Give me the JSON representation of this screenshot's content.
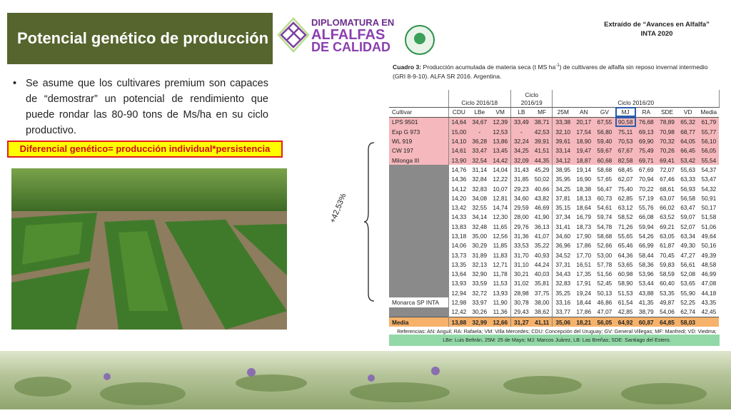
{
  "header": {
    "title": "Potencial genético de producción",
    "logo_text": [
      "DIPLOMATURA EN",
      "ALFALFAS",
      "DE CALIDAD"
    ],
    "source": [
      "Extraído de “Avances en Alfalfa”",
      "INTA 2020"
    ]
  },
  "bullet": "Se asume que los cultivares premium son capaces de “demostrar” un potencial de rendimiento que puede rondar las 80-90 tons de Ms/ha en su ciclo productivo.",
  "highlight": "Diferencial genético= producción individual*persistencia",
  "annotation": "+42,53%",
  "table": {
    "caption_label": "Cuadro 3:",
    "caption_a": "Producción acumulada de materia seca (t MS ha",
    "caption_sup": "-1",
    "caption_b": ") de cultivares de alfalfa sin reposo invernal intermedio (GRI 8-9-10). ALFA SR 2016. Argentina.",
    "groups": [
      {
        "label": "Ciclo 2016/18",
        "span": 3
      },
      {
        "label": "Ciclo 2016/19",
        "span": 2
      },
      {
        "label": "Ciclo 2016/20",
        "span": 8
      }
    ],
    "columns": [
      "Cultivar",
      "CDU",
      "LBe",
      "VM",
      "LB",
      "MF",
      "25M",
      "AN",
      "GV",
      "MJ",
      "RA",
      "SDE",
      "VD",
      "Media"
    ],
    "rows": [
      {
        "cultivar": "LPS 9501",
        "values": [
          "14,64",
          "34,67",
          "12,39",
          "33,49",
          "38,71",
          "33,38",
          "20,17",
          "67,55",
          "90,58",
          "76,68",
          "78,89",
          "65,32",
          "61,79"
        ]
      },
      {
        "cultivar": "Exp G 973",
        "values": [
          "15,00",
          "-",
          "12,53",
          "-",
          "42,53",
          "32,10",
          "17,54",
          "56,80",
          "75,11",
          "69,13",
          "70,98",
          "68,77",
          "55,77"
        ]
      },
      {
        "cultivar": "WL 919",
        "values": [
          "14,10",
          "36,28",
          "13,86",
          "32,24",
          "39,91",
          "39,61",
          "18,90",
          "59,40",
          "70,53",
          "69,90",
          "70,32",
          "64,05",
          "56,10"
        ]
      },
      {
        "cultivar": "CW 197",
        "values": [
          "14,61",
          "33,47",
          "13,45",
          "34,25",
          "41,51",
          "33,14",
          "19,47",
          "59,67",
          "67,67",
          "75,49",
          "70,26",
          "66,45",
          "56,05"
        ]
      },
      {
        "cultivar": "Milonga III",
        "values": [
          "13,90",
          "32,54",
          "14,42",
          "32,09",
          "44,35",
          "34,12",
          "18,87",
          "60,68",
          "82,58",
          "69,71",
          "69,41",
          "53,42",
          "55,54"
        ]
      },
      {
        "cultivar": null,
        "values": [
          "14,76",
          "31,14",
          "14,04",
          "31,43",
          "45,29",
          "38,95",
          "19,14",
          "58,68",
          "68,45",
          "67,69",
          "72,07",
          "55,63",
          "54,37"
        ]
      },
      {
        "cultivar": null,
        "values": [
          "14,36",
          "32,84",
          "12,22",
          "31,85",
          "50,02",
          "35,95",
          "16,90",
          "57,65",
          "62,07",
          "70,94",
          "67,46",
          "63,33",
          "53,47"
        ]
      },
      {
        "cultivar": null,
        "values": [
          "14,12",
          "32,83",
          "10,07",
          "29,23",
          "40,66",
          "34,25",
          "18,38",
          "56,47",
          "75,40",
          "70,22",
          "68,61",
          "56,93",
          "54,32"
        ]
      },
      {
        "cultivar": null,
        "values": [
          "14,20",
          "34,08",
          "12,81",
          "34,60",
          "43,82",
          "37,81",
          "18,13",
          "60,73",
          "62,85",
          "57,19",
          "63,07",
          "56,58",
          "50,91"
        ]
      },
      {
        "cultivar": null,
        "values": [
          "13,42",
          "32,55",
          "14,74",
          "29,59",
          "46,69",
          "35,15",
          "18,64",
          "54,61",
          "63,12",
          "55,76",
          "66,02",
          "63,47",
          "50,17"
        ]
      },
      {
        "cultivar": null,
        "values": [
          "14,33",
          "34,14",
          "12,30",
          "28,00",
          "41,90",
          "37,34",
          "16,79",
          "59,74",
          "58,52",
          "66,08",
          "63,52",
          "59,07",
          "51,58"
        ]
      },
      {
        "cultivar": null,
        "values": [
          "13,83",
          "32,48",
          "11,65",
          "29,76",
          "36,13",
          "31,41",
          "18,73",
          "54,78",
          "71,26",
          "59,94",
          "69,21",
          "52,07",
          "51,06"
        ]
      },
      {
        "cultivar": null,
        "values": [
          "13,18",
          "35,00",
          "12,56",
          "31,36",
          "41,07",
          "34,60",
          "17,90",
          "58,68",
          "55,65",
          "54,26",
          "63,05",
          "63,34",
          "49,64"
        ]
      },
      {
        "cultivar": null,
        "values": [
          "14,06",
          "30,29",
          "11,85",
          "33,53",
          "35,22",
          "36,96",
          "17,86",
          "52,66",
          "65,46",
          "66,99",
          "61,87",
          "49,30",
          "50,16"
        ]
      },
      {
        "cultivar": null,
        "values": [
          "13,73",
          "31,89",
          "11,83",
          "31,70",
          "40,93",
          "34,52",
          "17,70",
          "53,00",
          "64,36",
          "58,44",
          "70,45",
          "47,27",
          "49,39"
        ]
      },
      {
        "cultivar": null,
        "values": [
          "13,35",
          "32,13",
          "12,71",
          "31,10",
          "44,24",
          "37,31",
          "16,51",
          "57,78",
          "53,65",
          "58,36",
          "59,83",
          "56,61",
          "48,58"
        ]
      },
      {
        "cultivar": null,
        "values": [
          "13,64",
          "32,90",
          "11,78",
          "30,21",
          "40,03",
          "34,43",
          "17,35",
          "51,56",
          "60,98",
          "53,96",
          "58,59",
          "52,08",
          "46,99"
        ]
      },
      {
        "cultivar": null,
        "values": [
          "13,93",
          "33,59",
          "11,53",
          "31,02",
          "35,81",
          "32,83",
          "17,91",
          "52,45",
          "58,90",
          "53,44",
          "60,40",
          "53,65",
          "47,08"
        ]
      },
      {
        "cultivar": null,
        "values": [
          "12,94",
          "32,72",
          "13,93",
          "28,98",
          "37,75",
          "35,25",
          "19,24",
          "50,13",
          "51,53",
          "43,88",
          "53,35",
          "55,90",
          "44,18"
        ]
      },
      {
        "cultivar": "Monarca SP INTA",
        "values": [
          "12,98",
          "33,97",
          "11,90",
          "30,78",
          "38,00",
          "33,16",
          "18,44",
          "46,86",
          "61,54",
          "41,35",
          "49,87",
          "52,25",
          "43,35"
        ]
      },
      {
        "cultivar": null,
        "values": [
          "12,42",
          "30,26",
          "11,36",
          "29,43",
          "38,62",
          "33,77",
          "17,86",
          "47,07",
          "42,85",
          "38,79",
          "54,06",
          "62,74",
          "42,45"
        ]
      },
      {
        "cultivar": "Media",
        "values": [
          "13,88",
          "32,99",
          "12,66",
          "31,27",
          "41,11",
          "35,06",
          "18,21",
          "56,05",
          "64,92",
          "60,87",
          "64,85",
          "58,03"
        ]
      }
    ],
    "footnote": "Referencias: AN: Anguil; RA: Rafaela; VM: Villa Mercedes; CDU: Concepción del Uruguay; GV: General Villegas; MF: Manfredi; VD: Viedma; LBe: Luis Beltrán, 25M: 25 de Mayo; MJ: Marcos Juárez, LB: Las Breñas; SDE: Santiago del Estero."
  }
}
